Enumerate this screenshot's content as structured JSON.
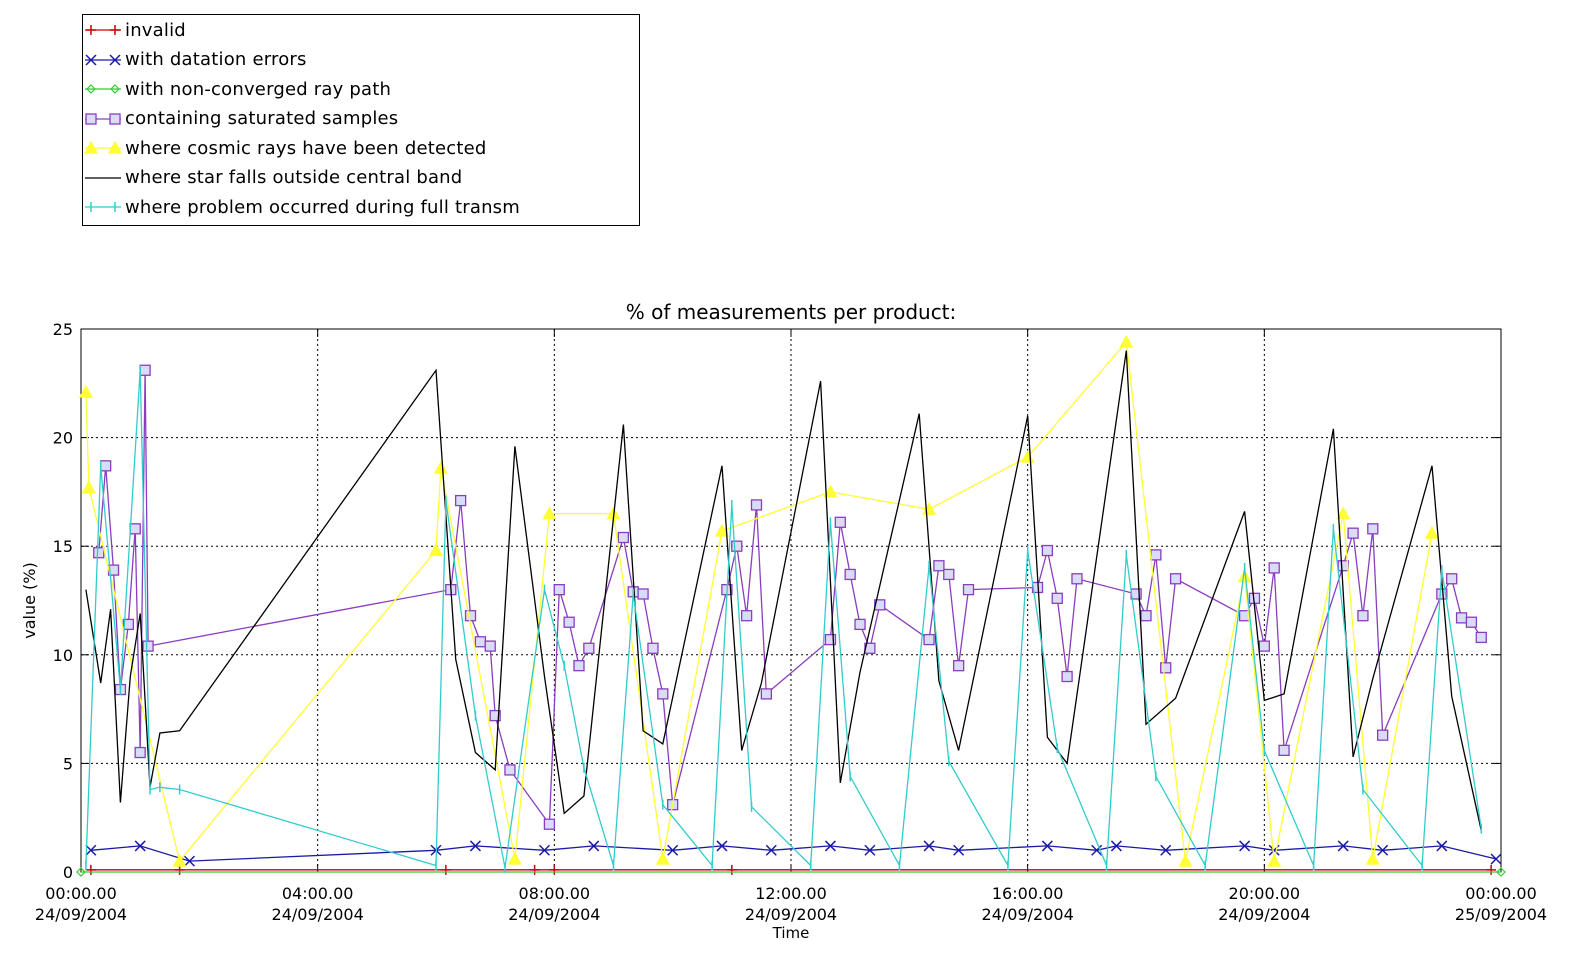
{
  "chart_data": {
    "type": "line",
    "title": "% of measurements per product:",
    "xlabel": "Time",
    "ylabel": "value (%)",
    "xlim": [
      "2004-09-24 00:00:00",
      "2004-09-25 00:00:00"
    ],
    "ylim": [
      0,
      25
    ],
    "grid": true,
    "legend_placement": "top-left, above plot",
    "y_ticks": [
      "0",
      "5",
      "10",
      "15",
      "20",
      "25"
    ],
    "x_ticks": [
      {
        "time": "00:00.00",
        "date": "24/09/2004"
      },
      {
        "time": "04:00.00",
        "date": "24/09/2004"
      },
      {
        "time": "08:00.00",
        "date": "24/09/2004"
      },
      {
        "time": "12:00.00",
        "date": "24/09/2004"
      },
      {
        "time": "16:00.00",
        "date": "24/09/2004"
      },
      {
        "time": "20:00.00",
        "date": "24/09/2004"
      },
      {
        "time": "00:00.00",
        "date": "25/09/2004"
      }
    ],
    "series": [
      {
        "name": "invalid",
        "color": "#cc0000",
        "marker": "plus",
        "x": [
          "2004-09-24 00:10",
          "2004-09-24 01:40",
          "2004-09-24 06:10",
          "2004-09-24 07:40",
          "2004-09-24 08:00",
          "2004-09-24 11:00",
          "2004-09-24 23:50"
        ],
        "y": [
          0.1,
          0.1,
          0.1,
          0.1,
          0.1,
          0.1,
          0.1
        ]
      },
      {
        "name": "with datation errors",
        "color": "#1a1aa6",
        "marker": "x",
        "x": [
          "2004-09-24 00:10",
          "2004-09-24 01:00",
          "2004-09-24 01:50",
          "2004-09-24 06:00",
          "2004-09-24 06:40",
          "2004-09-24 07:50",
          "2004-09-24 08:40",
          "2004-09-24 10:00",
          "2004-09-24 10:50",
          "2004-09-24 11:40",
          "2004-09-24 12:40",
          "2004-09-24 13:20",
          "2004-09-24 14:20",
          "2004-09-24 14:50",
          "2004-09-24 16:20",
          "2004-09-24 17:10",
          "2004-09-24 17:30",
          "2004-09-24 18:20",
          "2004-09-24 19:40",
          "2004-09-24 20:10",
          "2004-09-24 21:20",
          "2004-09-24 22:00",
          "2004-09-24 23:00",
          "2004-09-24 23:55"
        ],
        "y": [
          1.0,
          1.2,
          0.5,
          1.0,
          1.2,
          1.0,
          1.2,
          1.0,
          1.2,
          1.0,
          1.2,
          1.0,
          1.2,
          1.0,
          1.2,
          1.0,
          1.2,
          1.0,
          1.2,
          1.0,
          1.2,
          1.0,
          1.2,
          0.6
        ]
      },
      {
        "name": "with non-converged ray path",
        "color": "#33cc33",
        "marker": "diamond",
        "x": [
          "2004-09-24 00:00",
          "2004-09-24 24:00"
        ],
        "y": [
          0,
          0
        ]
      },
      {
        "name": "containing saturated samples",
        "color": "#8a3dbf",
        "marker": "square",
        "x": [
          "2004-09-24 00:18",
          "2004-09-24 00:25",
          "2004-09-24 00:33",
          "2004-09-24 00:40",
          "2004-09-24 00:48",
          "2004-09-24 00:55",
          "2004-09-24 01:00",
          "2004-09-24 01:05",
          "2004-09-24 01:08",
          "2004-09-24 06:15",
          "2004-09-24 06:25",
          "2004-09-24 06:35",
          "2004-09-24 06:45",
          "2004-09-24 06:55",
          "2004-09-24 07:00",
          "2004-09-24 07:15",
          "2004-09-24 07:55",
          "2004-09-24 08:05",
          "2004-09-24 08:15",
          "2004-09-24 08:25",
          "2004-09-24 08:35",
          "2004-09-24 09:10",
          "2004-09-24 09:20",
          "2004-09-24 09:30",
          "2004-09-24 09:40",
          "2004-09-24 09:50",
          "2004-09-24 10:00",
          "2004-09-24 10:55",
          "2004-09-24 11:05",
          "2004-09-24 11:15",
          "2004-09-24 11:25",
          "2004-09-24 11:35",
          "2004-09-24 12:40",
          "2004-09-24 12:50",
          "2004-09-24 13:00",
          "2004-09-24 13:10",
          "2004-09-24 13:20",
          "2004-09-24 13:30",
          "2004-09-24 14:20",
          "2004-09-24 14:30",
          "2004-09-24 14:40",
          "2004-09-24 14:50",
          "2004-09-24 15:00",
          "2004-09-24 16:10",
          "2004-09-24 16:20",
          "2004-09-24 16:30",
          "2004-09-24 16:40",
          "2004-09-24 16:50",
          "2004-09-24 17:50",
          "2004-09-24 18:00",
          "2004-09-24 18:10",
          "2004-09-24 18:20",
          "2004-09-24 18:30",
          "2004-09-24 19:40",
          "2004-09-24 19:50",
          "2004-09-24 20:00",
          "2004-09-24 20:10",
          "2004-09-24 20:20",
          "2004-09-24 21:20",
          "2004-09-24 21:30",
          "2004-09-24 21:40",
          "2004-09-24 21:50",
          "2004-09-24 22:00",
          "2004-09-24 23:00",
          "2004-09-24 23:10",
          "2004-09-24 23:20",
          "2004-09-24 23:30",
          "2004-09-24 23:40"
        ],
        "y": [
          14.7,
          18.7,
          13.9,
          8.4,
          11.4,
          15.8,
          5.5,
          23.1,
          10.4,
          13.0,
          17.1,
          11.8,
          10.6,
          10.4,
          7.2,
          4.7,
          2.2,
          13.0,
          11.5,
          9.5,
          10.3,
          15.4,
          12.9,
          12.8,
          10.3,
          8.2,
          3.1,
          13.0,
          15.0,
          11.8,
          16.9,
          8.2,
          10.7,
          16.1,
          13.7,
          11.4,
          10.3,
          12.3,
          10.7,
          14.1,
          13.7,
          9.5,
          13.0,
          13.1,
          14.8,
          12.6,
          9.0,
          13.5,
          12.8,
          11.8,
          14.6,
          9.4,
          13.5,
          11.8,
          12.6,
          10.4,
          14.0,
          5.6,
          14.1,
          15.6,
          11.8,
          15.8,
          6.3,
          12.8,
          13.5,
          11.7,
          11.5,
          10.8
        ]
      },
      {
        "name": "where cosmic rays have been detected",
        "color": "#ffff33",
        "marker": "triangle",
        "x": [
          "2004-09-24 00:05",
          "2004-09-24 00:08",
          "2004-09-24 01:40",
          "2004-09-24 06:00",
          "2004-09-24 06:05",
          "2004-09-24 07:20",
          "2004-09-24 07:55",
          "2004-09-24 09:00",
          "2004-09-24 09:50",
          "2004-09-24 10:50",
          "2004-09-24 12:40",
          "2004-09-24 14:20",
          "2004-09-24 16:00",
          "2004-09-24 17:40",
          "2004-09-24 18:40",
          "2004-09-24 19:40",
          "2004-09-24 20:10",
          "2004-09-24 21:20",
          "2004-09-24 21:50",
          "2004-09-24 22:50"
        ],
        "y": [
          22.1,
          17.7,
          0.5,
          14.8,
          18.6,
          0.6,
          16.5,
          16.5,
          0.6,
          15.7,
          17.5,
          16.7,
          19.1,
          24.4,
          0.5,
          13.6,
          0.5,
          16.5,
          0.6,
          15.6
        ]
      },
      {
        "name": "where star falls outside central band",
        "color": "#000000",
        "marker": "none",
        "x": [
          "2004-09-24 00:05",
          "2004-09-24 00:20",
          "2004-09-24 00:30",
          "2004-09-24 00:40",
          "2004-09-24 00:50",
          "2004-09-24 01:00",
          "2004-09-24 01:10",
          "2004-09-24 01:20",
          "2004-09-24 01:40",
          "2004-09-24 06:00",
          "2004-09-24 06:20",
          "2004-09-24 06:40",
          "2004-09-24 07:00",
          "2004-09-24 07:20",
          "2004-09-24 07:50",
          "2004-09-24 08:10",
          "2004-09-24 08:30",
          "2004-09-24 09:10",
          "2004-09-24 09:30",
          "2004-09-24 09:50",
          "2004-09-24 10:50",
          "2004-09-24 11:10",
          "2004-09-24 11:30",
          "2004-09-24 12:30",
          "2004-09-24 12:50",
          "2004-09-24 13:10",
          "2004-09-24 14:10",
          "2004-09-24 14:30",
          "2004-09-24 14:50",
          "2004-09-24 16:00",
          "2004-09-24 16:20",
          "2004-09-24 16:40",
          "2004-09-24 17:40",
          "2004-09-24 18:00",
          "2004-09-24 18:30",
          "2004-09-24 19:40",
          "2004-09-24 20:00",
          "2004-09-24 20:20",
          "2004-09-24 21:10",
          "2004-09-24 21:30",
          "2004-09-24 21:50",
          "2004-09-24 22:50",
          "2004-09-24 23:10",
          "2004-09-24 23:40"
        ],
        "y": [
          13.0,
          8.7,
          12.1,
          3.2,
          9.0,
          11.9,
          3.9,
          6.4,
          6.5,
          23.1,
          9.8,
          5.5,
          4.7,
          19.6,
          9.0,
          2.7,
          3.5,
          20.6,
          6.5,
          5.9,
          18.7,
          5.6,
          8.7,
          22.6,
          4.1,
          9.2,
          21.1,
          8.8,
          5.6,
          21.0,
          6.2,
          5.0,
          24.0,
          6.8,
          8.0,
          16.6,
          7.9,
          8.2,
          20.4,
          5.3,
          8.9,
          18.7,
          8.1,
          1.9
        ]
      },
      {
        "name": "where problem occurred during full transm",
        "color": "#33cccc",
        "marker": "bar",
        "x": [
          "2004-09-24 00:05",
          "2004-09-24 00:20",
          "2004-09-24 00:40",
          "2004-09-24 01:00",
          "2004-09-24 01:10",
          "2004-09-24 01:20",
          "2004-09-24 01:40",
          "2004-09-24 06:00",
          "2004-09-24 06:10",
          "2004-09-24 06:40",
          "2004-09-24 07:10",
          "2004-09-24 07:50",
          "2004-09-24 08:10",
          "2004-09-24 08:30",
          "2004-09-24 09:00",
          "2004-09-24 09:20",
          "2004-09-24 09:50",
          "2004-09-24 10:40",
          "2004-09-24 11:00",
          "2004-09-24 11:20",
          "2004-09-24 12:20",
          "2004-09-24 12:40",
          "2004-09-24 13:00",
          "2004-09-24 13:50",
          "2004-09-24 14:20",
          "2004-09-24 14:40",
          "2004-09-24 15:40",
          "2004-09-24 16:00",
          "2004-09-24 16:30",
          "2004-09-24 17:20",
          "2004-09-24 17:40",
          "2004-09-24 18:10",
          "2004-09-24 19:00",
          "2004-09-24 19:40",
          "2004-09-24 20:00",
          "2004-09-24 20:50",
          "2004-09-24 21:10",
          "2004-09-24 21:40",
          "2004-09-24 22:40",
          "2004-09-24 23:00",
          "2004-09-24 23:40"
        ],
        "y": [
          0.3,
          18.7,
          8.4,
          23.1,
          3.8,
          3.9,
          3.8,
          0.3,
          17.1,
          7.2,
          0.2,
          13.0,
          9.5,
          4.8,
          0.3,
          12.8,
          3.1,
          0.3,
          16.9,
          3.0,
          0.3,
          16.1,
          4.4,
          0.3,
          14.1,
          5.1,
          0.3,
          14.8,
          5.7,
          0.3,
          14.6,
          4.4,
          0.3,
          14.0,
          5.6,
          0.3,
          15.8,
          3.8,
          0.3,
          13.9,
          2.0
        ]
      }
    ]
  }
}
